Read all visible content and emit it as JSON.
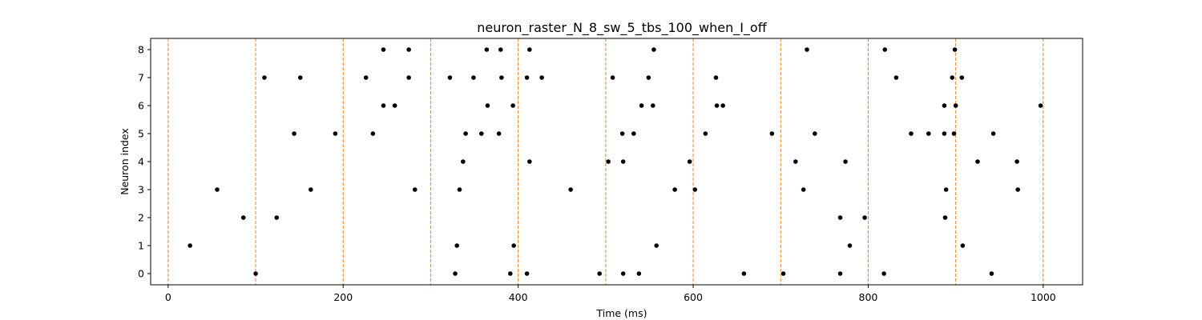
{
  "chart_data": {
    "type": "scatter",
    "title": "neuron_raster_N_8_sw_5_tbs_100_when_I_off",
    "xlabel": "Time (ms)",
    "ylabel": "Neuron index",
    "xlim": [
      -20,
      1045
    ],
    "ylim": [
      -0.4,
      8.4
    ],
    "xticks": [
      0,
      200,
      400,
      600,
      800,
      1000
    ],
    "yticks": [
      0,
      1,
      2,
      3,
      4,
      5,
      6,
      7,
      8
    ],
    "grid": false,
    "vlines": {
      "x": [
        0,
        100,
        200,
        300,
        400,
        500,
        600,
        700,
        800,
        900,
        1000
      ],
      "color": "#ff7f0e",
      "style": "dashed"
    },
    "marker_color": "#000000",
    "spikes": [
      {
        "neuron": 0,
        "times": [
          100,
          328,
          391,
          410,
          493,
          520,
          538,
          658,
          703,
          768,
          818,
          941
        ]
      },
      {
        "neuron": 1,
        "times": [
          25,
          330,
          395,
          558,
          779,
          908
        ]
      },
      {
        "neuron": 2,
        "times": [
          86,
          124,
          768,
          796,
          888
        ]
      },
      {
        "neuron": 3,
        "times": [
          56,
          163,
          282,
          333,
          460,
          579,
          602,
          726,
          889,
          971
        ]
      },
      {
        "neuron": 4,
        "times": [
          337,
          413,
          503,
          520,
          596,
          717,
          774,
          925,
          970
        ]
      },
      {
        "neuron": 5,
        "times": [
          144,
          191,
          234,
          340,
          358,
          378,
          519,
          532,
          614,
          690,
          739,
          849,
          869,
          887,
          898,
          943
        ]
      },
      {
        "neuron": 6,
        "times": [
          246,
          259,
          365,
          394,
          541,
          554,
          627,
          634,
          887,
          900,
          997
        ]
      },
      {
        "neuron": 7,
        "times": [
          110,
          151,
          226,
          275,
          322,
          349,
          381,
          410,
          427,
          508,
          549,
          626,
          832,
          896,
          907
        ]
      },
      {
        "neuron": 8,
        "times": [
          246,
          275,
          364,
          380,
          413,
          555,
          730,
          819,
          899
        ]
      }
    ]
  }
}
